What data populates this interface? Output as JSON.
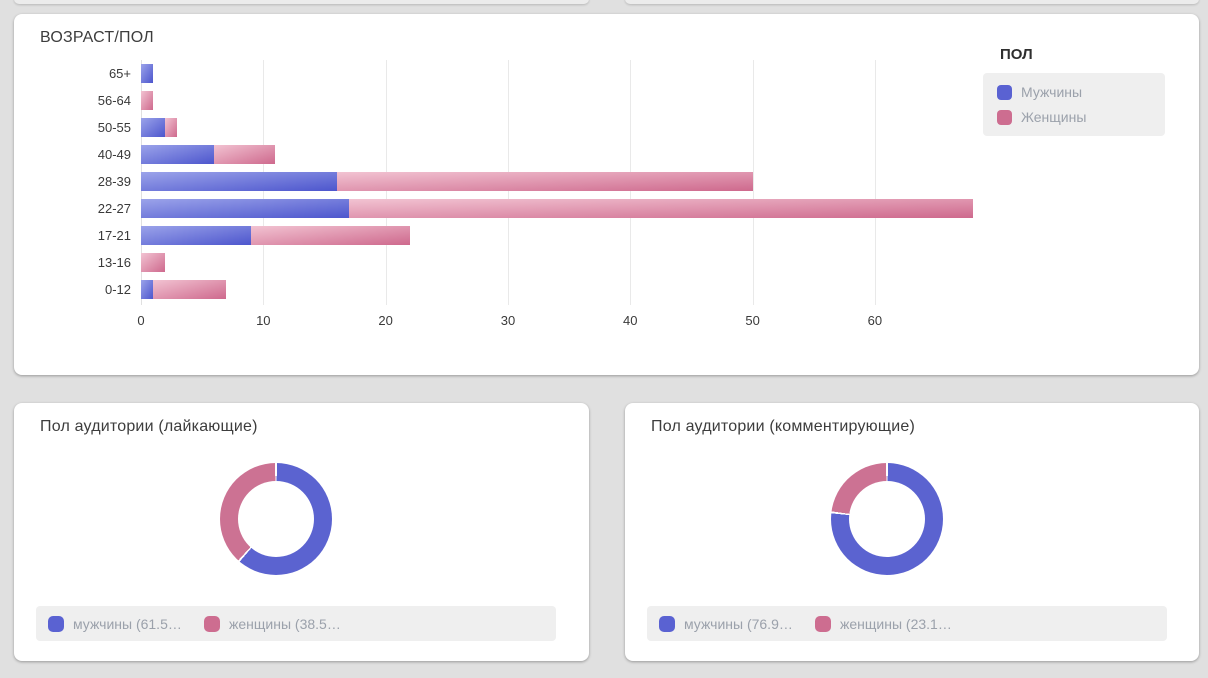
{
  "page_background": "#e0e0e0",
  "age_gender_card": {
    "title": "ВОЗРАСТ/ПОЛ",
    "legend": {
      "title": "ПОЛ",
      "items": [
        {
          "label": "Мужчины",
          "color": "#5a62d2"
        },
        {
          "label": "Женщины",
          "color": "#cd6d90"
        }
      ]
    }
  },
  "likers_card": {
    "title": "Пол аудитории (лайкающие)",
    "legend": [
      {
        "label": "мужчины (61.5…",
        "color": "#5a62d2"
      },
      {
        "label": "женщины (38.5…",
        "color": "#cd6d90"
      }
    ]
  },
  "commenters_card": {
    "title": "Пол аудитории (комментирующие)",
    "legend": [
      {
        "label": "мужчины (76.9…",
        "color": "#5a62d2"
      },
      {
        "label": "женщины (23.1…",
        "color": "#cd6d90"
      }
    ]
  },
  "chart_data": [
    {
      "type": "bar",
      "orientation": "horizontal",
      "stacked": true,
      "title": "ВОЗРАСТ/ПОЛ",
      "categories": [
        "65+",
        "56-64",
        "50-55",
        "40-49",
        "28-39",
        "22-27",
        "17-21",
        "13-16",
        "0-12"
      ],
      "series": [
        {
          "name": "Мужчины",
          "color_solid": "#5a62d2",
          "color_gradient": [
            "#9ba3ea",
            "#4d56cd"
          ],
          "values": [
            1,
            0,
            2,
            6,
            16,
            17,
            9,
            0,
            1
          ]
        },
        {
          "name": "Женщины",
          "color_solid": "#cd6d90",
          "color_gradient": [
            "#f2c3d2",
            "#ce698d"
          ],
          "values": [
            0,
            1,
            1,
            5,
            34,
            51,
            13,
            2,
            6
          ]
        }
      ],
      "xlim": [
        0,
        69
      ],
      "xticks": [
        0,
        10,
        20,
        30,
        40,
        50,
        60
      ],
      "grid": "vertical",
      "legend_position": "right"
    },
    {
      "type": "pie",
      "donut": true,
      "title": "Пол аудитории (лайкающие)",
      "labels": [
        "мужчины",
        "женщины"
      ],
      "values": [
        61.5,
        38.5
      ],
      "colors": [
        "#5b63d0",
        "#cc7293"
      ],
      "start_angle": "12-oclock",
      "direction": "clockwise",
      "legend_position": "bottom"
    },
    {
      "type": "pie",
      "donut": true,
      "title": "Пол аудитории (комментирующие)",
      "labels": [
        "мужчины",
        "женщины"
      ],
      "values": [
        76.9,
        23.1
      ],
      "colors": [
        "#5b63d0",
        "#cc7293"
      ],
      "start_angle": "12-oclock",
      "direction": "clockwise",
      "legend_position": "bottom"
    }
  ]
}
